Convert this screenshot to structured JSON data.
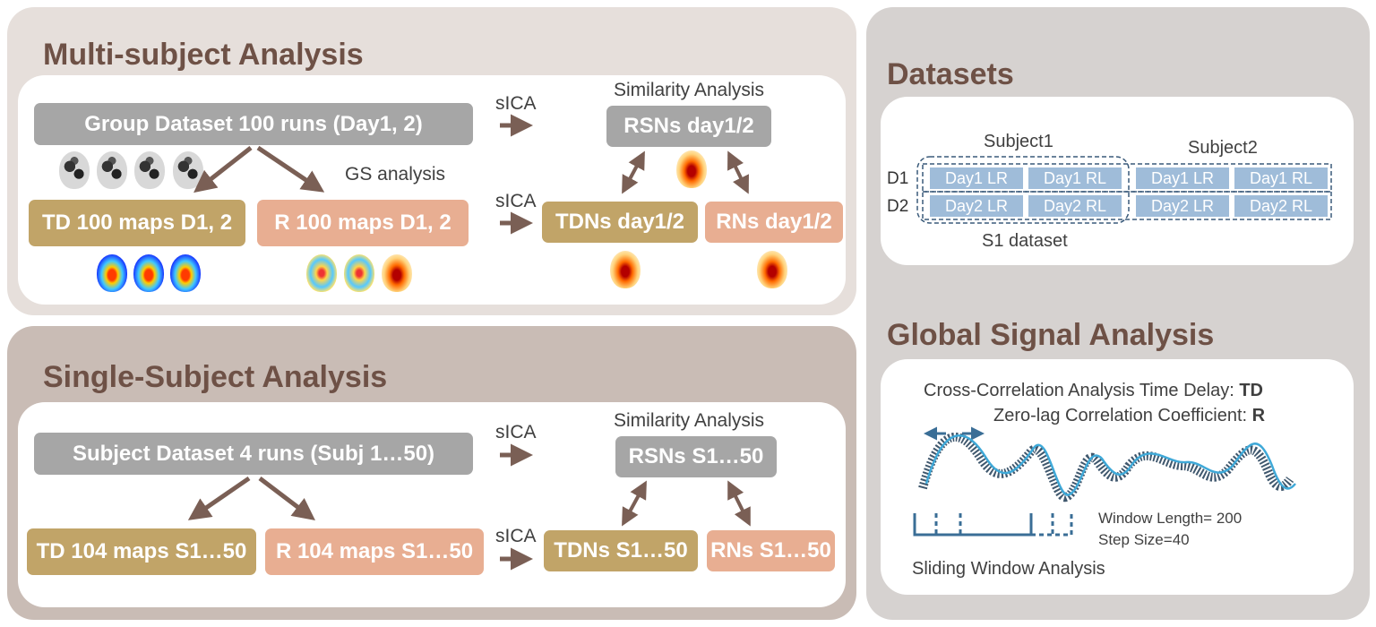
{
  "multi": {
    "title": "Multi-subject Analysis",
    "group_dataset": "Group Dataset 100 runs (Day1, 2)",
    "sica_top": "sICA",
    "sica_bottom": "sICA",
    "similarity": "Similarity Analysis",
    "gs_analysis": "GS analysis",
    "rsns": "RSNs day1/2",
    "td_maps": "TD 100 maps D1, 2",
    "r_maps": "R 100 maps D1, 2",
    "tdns": "TDNs day1/2",
    "rns": "RNs day1/2"
  },
  "single": {
    "title": "Single-Subject Analysis",
    "subject_dataset": "Subject Dataset 4 runs (Subj 1…50)",
    "sica_top": "sICA",
    "sica_bottom": "sICA",
    "similarity": "Similarity Analysis",
    "rsns": "RSNs S1…50",
    "td_maps": "TD 104 maps S1…50",
    "r_maps": "R 104 maps S1…50",
    "tdns": "TDNs S1…50",
    "rns": "RNs S1…50"
  },
  "datasets": {
    "title": "Datasets",
    "subject1": "Subject1",
    "subject2": "Subject2",
    "d1": "D1",
    "d2": "D2",
    "day1_lr": "Day1 LR",
    "day1_rl": "Day1 RL",
    "day2_lr": "Day2 LR",
    "day2_rl": "Day2 RL",
    "s1_dataset": "S1 dataset"
  },
  "gsa": {
    "title": "Global Signal Analysis",
    "cross_corr": "Cross-Correlation Analysis Time Delay: ",
    "cross_corr_abbr": "TD",
    "zero_lag": "Zero-lag Correlation Coefficient: ",
    "zero_lag_abbr": "R",
    "window_length": "Window Length= 200",
    "step_size": "Step Size=40",
    "sliding": "Sliding Window Analysis"
  },
  "colors": {
    "panel_top": "#e6dfdb",
    "panel_bottom": "#c9bcb5",
    "panel_right": "#d6d2d0",
    "title": "#6e5146",
    "gray_box": "#a6a6a6",
    "gold_box": "#c1a468",
    "peach_box": "#e8ae92",
    "arrow": "#7a5f55",
    "day_box": "#9fbcd9",
    "signal": "#3fa9d8"
  }
}
